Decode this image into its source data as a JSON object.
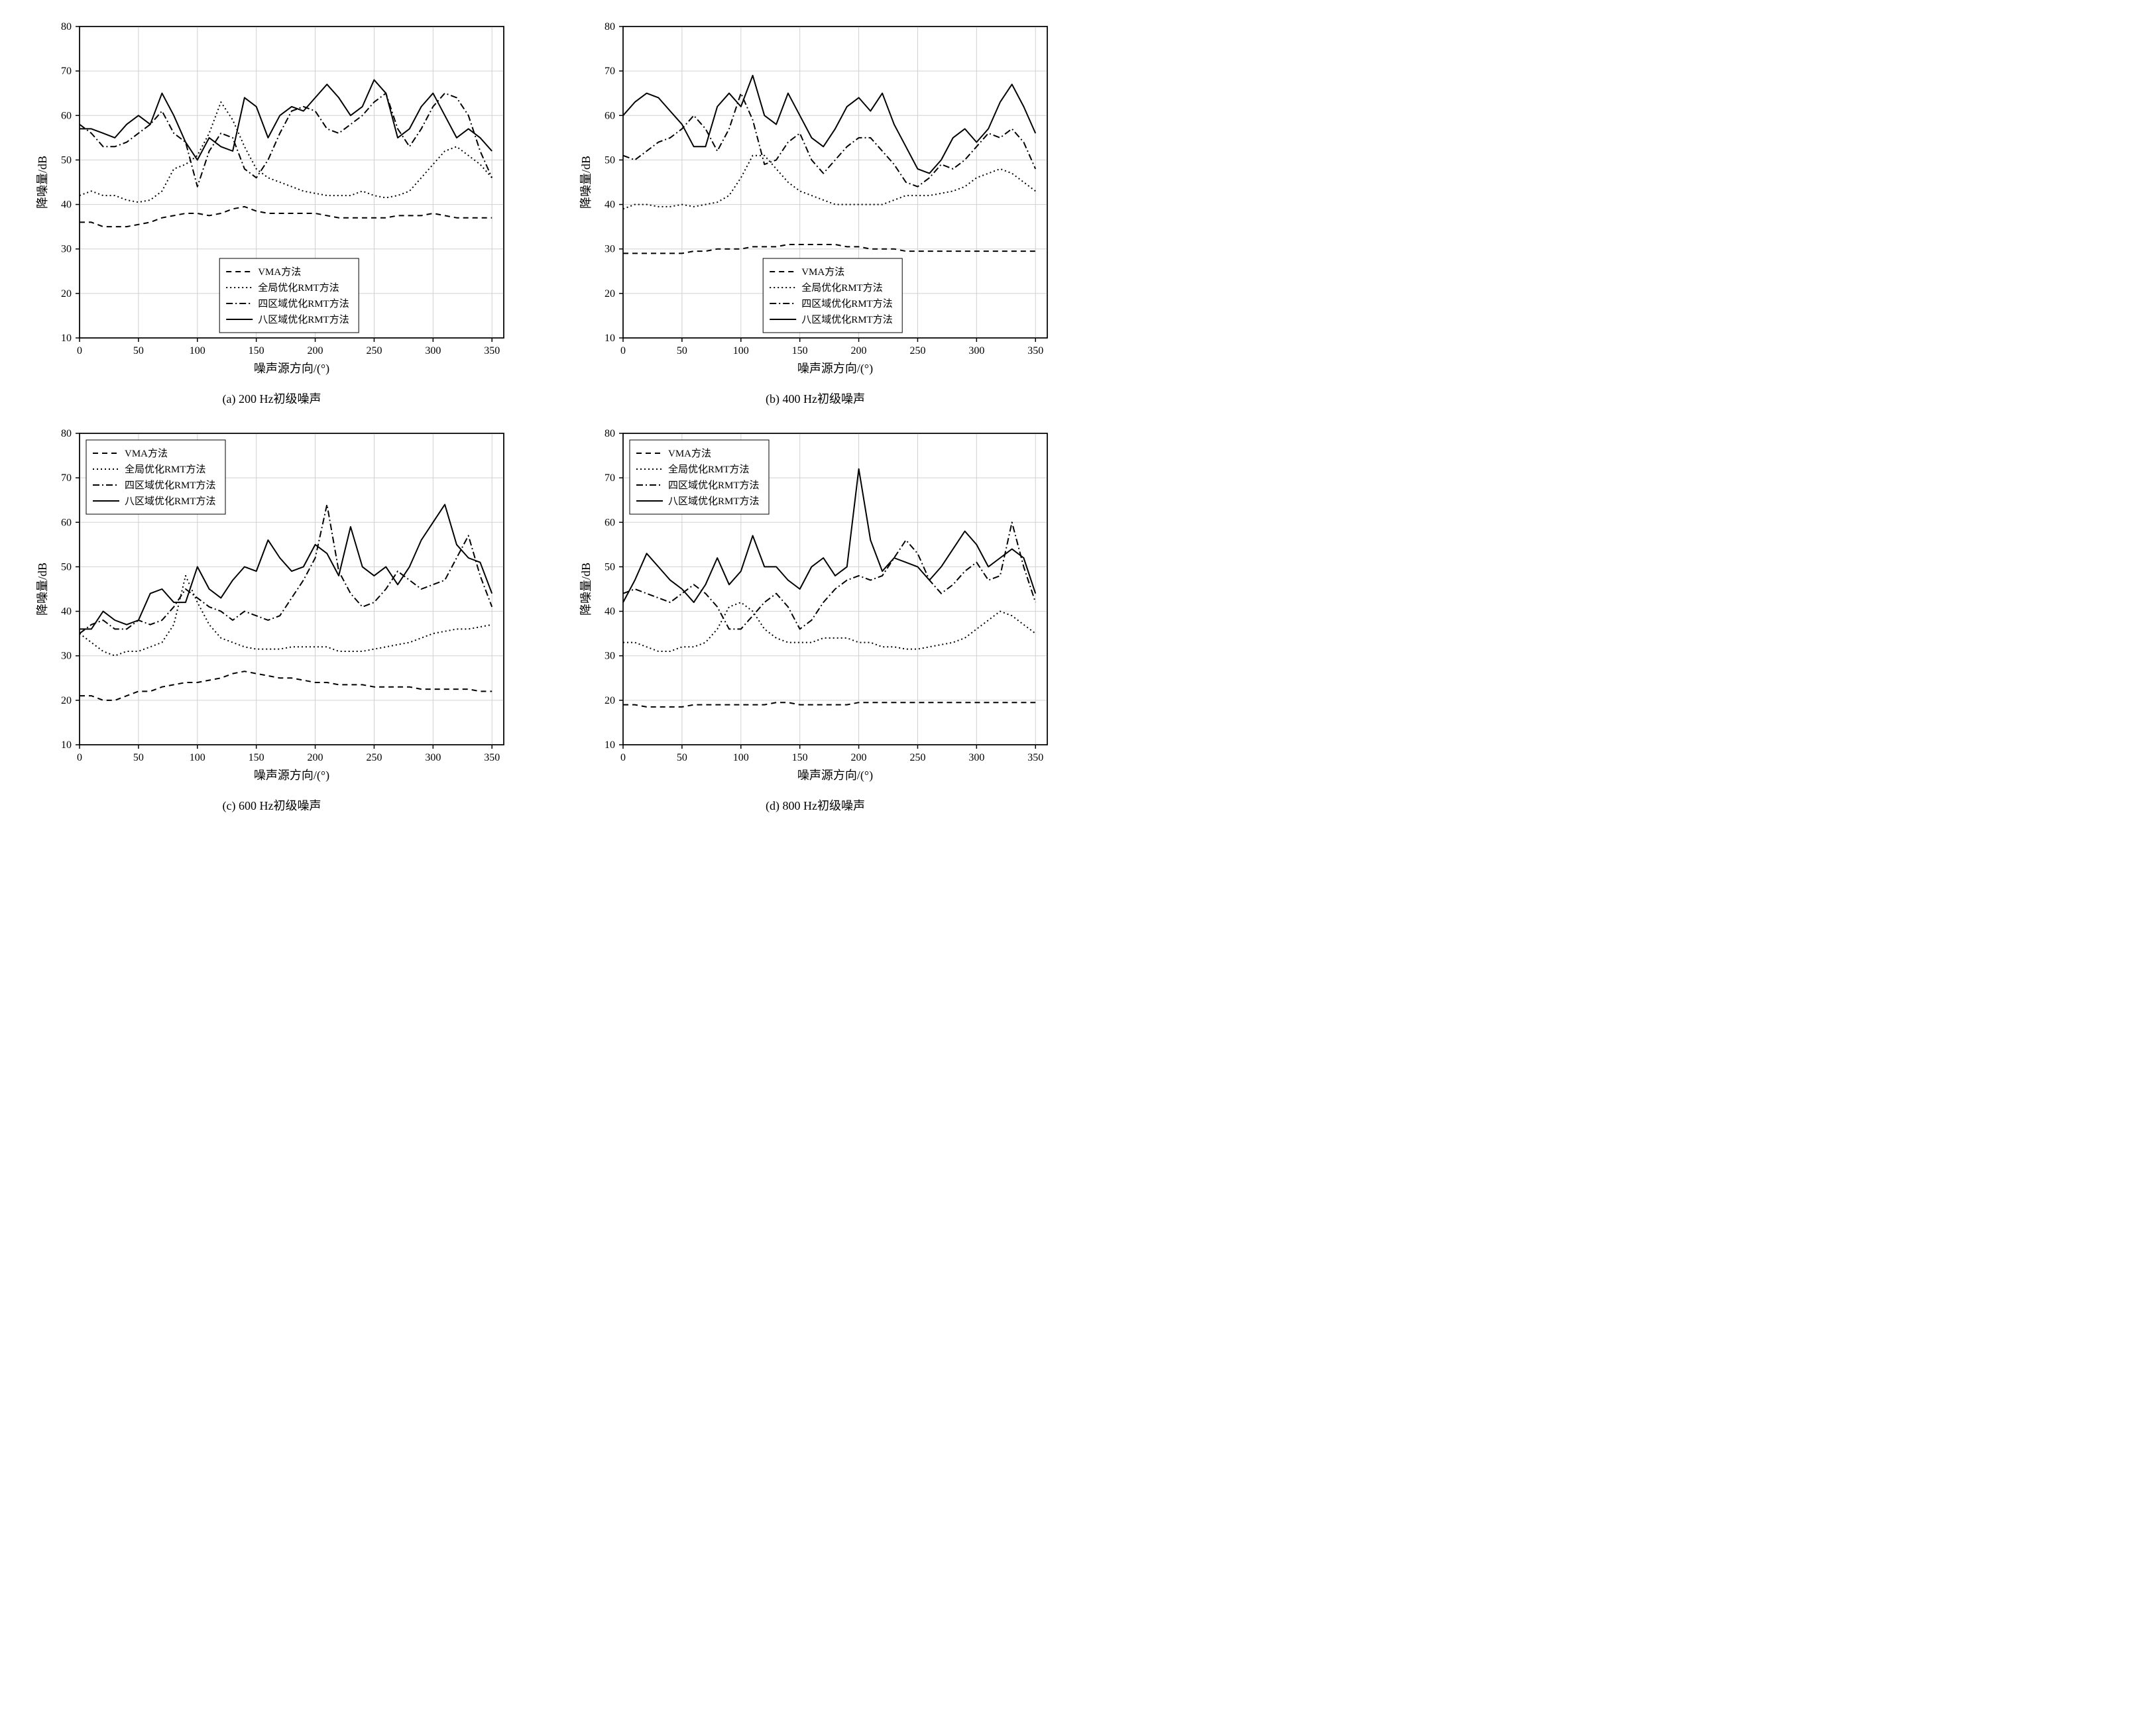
{
  "global": {
    "background_color": "#ffffff",
    "plot_bg_color": "#ffffff",
    "grid_color": "#d0d0d0",
    "axis_color": "#000000",
    "line_color": "#000000",
    "line_width": 2,
    "font_family": "Times New Roman, SimSun, serif",
    "tick_fontsize": 16,
    "label_fontsize": 18,
    "legend_fontsize": 15,
    "caption_fontsize": 18,
    "xlim": [
      0,
      360
    ],
    "ylim": [
      10,
      80
    ],
    "xticks": [
      0,
      50,
      100,
      150,
      200,
      250,
      300,
      350
    ],
    "yticks": [
      10,
      20,
      30,
      40,
      50,
      60,
      70,
      80
    ],
    "xlabel": "噪声源方向/(°)",
    "ylabel": "降噪量/dB",
    "x_step": 10,
    "legend_items": [
      {
        "label": "VMA方法",
        "dash": "8,6"
      },
      {
        "label": "全局优化RMT方法",
        "dash": "2,4"
      },
      {
        "label": "四区域优化RMT方法",
        "dash": "10,4,2,4"
      },
      {
        "label": "八区域优化RMT方法",
        "dash": "none"
      }
    ]
  },
  "charts": [
    {
      "id": "a",
      "caption": "(a) 200 Hz初级噪声",
      "legend_pos": "bottom-center",
      "series": [
        {
          "name": "VMA",
          "dash": "8,6",
          "y": [
            36,
            36,
            35,
            35,
            35,
            35.5,
            36,
            37,
            37.5,
            38,
            38,
            37.5,
            38,
            39,
            39.5,
            38.5,
            38,
            38,
            38,
            38,
            38,
            37.5,
            37,
            37,
            37,
            37,
            37,
            37.5,
            37.5,
            37.5,
            38,
            37.5,
            37,
            37,
            37,
            37
          ]
        },
        {
          "name": "全局",
          "dash": "2,4",
          "y": [
            42,
            43,
            42,
            42,
            41,
            40.5,
            41,
            43,
            48,
            49,
            51,
            56,
            63,
            59,
            53,
            48,
            46,
            45,
            44,
            43,
            42.5,
            42,
            42,
            42,
            43,
            42,
            41.5,
            42,
            43,
            46,
            49,
            52,
            53,
            51,
            49,
            46
          ]
        },
        {
          "name": "四区",
          "dash": "10,4,2,4",
          "y": [
            58,
            56,
            53,
            53,
            54,
            56,
            58,
            61,
            56,
            54,
            44,
            52,
            56,
            55,
            48,
            46,
            50,
            56,
            61,
            62,
            61,
            57,
            56,
            58,
            60,
            63,
            65,
            57,
            53,
            57,
            62,
            65,
            64,
            60,
            52,
            46
          ]
        },
        {
          "name": "八区",
          "dash": "none",
          "y": [
            57,
            57,
            56,
            55,
            58,
            60,
            58,
            65,
            60,
            54,
            50,
            55,
            53,
            52,
            64,
            62,
            55,
            60,
            62,
            61,
            64,
            67,
            64,
            60,
            62,
            68,
            65,
            55,
            57,
            62,
            65,
            60,
            55,
            57,
            55,
            52
          ]
        }
      ]
    },
    {
      "id": "b",
      "caption": "(b) 400 Hz初级噪声",
      "legend_pos": "bottom-center",
      "series": [
        {
          "name": "VMA",
          "dash": "8,6",
          "y": [
            29,
            29,
            29,
            29,
            29,
            29,
            29.5,
            29.5,
            30,
            30,
            30,
            30.5,
            30.5,
            30.5,
            31,
            31,
            31,
            31,
            31,
            30.5,
            30.5,
            30,
            30,
            30,
            29.5,
            29.5,
            29.5,
            29.5,
            29.5,
            29.5,
            29.5,
            29.5,
            29.5,
            29.5,
            29.5,
            29.5
          ]
        },
        {
          "name": "全局",
          "dash": "2,4",
          "y": [
            39,
            40,
            40,
            39.5,
            39.5,
            40,
            39.5,
            40,
            40.5,
            42,
            46,
            51,
            51,
            48,
            45,
            43,
            42,
            41,
            40,
            40,
            40,
            40,
            40,
            41,
            42,
            42,
            42,
            42.5,
            43,
            44,
            46,
            47,
            48,
            47,
            45,
            43
          ]
        },
        {
          "name": "四区",
          "dash": "10,4,2,4",
          "y": [
            51,
            50,
            52,
            54,
            55,
            57,
            60,
            57,
            52,
            57,
            65,
            59,
            49,
            50,
            54,
            56,
            50,
            47,
            50,
            53,
            55,
            55,
            52,
            49,
            45,
            44,
            46,
            49,
            48,
            50,
            53,
            56,
            55,
            57,
            54,
            48
          ]
        },
        {
          "name": "八区",
          "dash": "none",
          "y": [
            60,
            63,
            65,
            64,
            61,
            58,
            53,
            53,
            62,
            65,
            62,
            69,
            60,
            58,
            65,
            60,
            55,
            53,
            57,
            62,
            64,
            61,
            65,
            58,
            53,
            48,
            47,
            50,
            55,
            57,
            54,
            57,
            63,
            67,
            62,
            56
          ]
        }
      ]
    },
    {
      "id": "c",
      "caption": "(c) 600 Hz初级噪声",
      "legend_pos": "top-left",
      "series": [
        {
          "name": "VMA",
          "dash": "8,6",
          "y": [
            21,
            21,
            20,
            20,
            21,
            22,
            22,
            23,
            23.5,
            24,
            24,
            24.5,
            25,
            26,
            26.5,
            26,
            25.5,
            25,
            25,
            24.5,
            24,
            24,
            23.5,
            23.5,
            23.5,
            23,
            23,
            23,
            23,
            22.5,
            22.5,
            22.5,
            22.5,
            22.5,
            22,
            22
          ]
        },
        {
          "name": "全局",
          "dash": "2,4",
          "y": [
            35,
            33,
            31,
            30,
            31,
            31,
            32,
            33,
            37,
            48,
            42,
            37,
            34,
            33,
            32,
            31.5,
            31.5,
            31.5,
            32,
            32,
            32,
            32,
            31,
            31,
            31,
            31.5,
            32,
            32.5,
            33,
            34,
            35,
            35.5,
            36,
            36,
            36.5,
            37
          ]
        },
        {
          "name": "四区",
          "dash": "10,4,2,4",
          "y": [
            35,
            37,
            38,
            36,
            36,
            38,
            37,
            38,
            41,
            45,
            43,
            41,
            40,
            38,
            40,
            39,
            38,
            39,
            43,
            47,
            52,
            64,
            49,
            44,
            41,
            42,
            45,
            49,
            47,
            45,
            46,
            47,
            52,
            57,
            48,
            41
          ]
        },
        {
          "name": "八区",
          "dash": "none",
          "y": [
            36,
            36,
            40,
            38,
            37,
            38,
            44,
            45,
            42,
            42,
            50,
            45,
            43,
            47,
            50,
            49,
            56,
            52,
            49,
            50,
            55,
            53,
            48,
            59,
            50,
            48,
            50,
            46,
            50,
            56,
            60,
            64,
            55,
            52,
            51,
            44
          ]
        }
      ]
    },
    {
      "id": "d",
      "caption": "(d) 800 Hz初级噪声",
      "legend_pos": "top-left",
      "series": [
        {
          "name": "VMA",
          "dash": "8,6",
          "y": [
            19,
            19,
            18.5,
            18.5,
            18.5,
            18.5,
            19,
            19,
            19,
            19,
            19,
            19,
            19,
            19.5,
            19.5,
            19,
            19,
            19,
            19,
            19,
            19.5,
            19.5,
            19.5,
            19.5,
            19.5,
            19.5,
            19.5,
            19.5,
            19.5,
            19.5,
            19.5,
            19.5,
            19.5,
            19.5,
            19.5,
            19.5
          ]
        },
        {
          "name": "全局",
          "dash": "2,4",
          "y": [
            33,
            33,
            32,
            31,
            31,
            32,
            32,
            33,
            36,
            41,
            42,
            40,
            36,
            34,
            33,
            33,
            33,
            34,
            34,
            34,
            33,
            33,
            32,
            32,
            31.5,
            31.5,
            32,
            32.5,
            33,
            34,
            36,
            38,
            40,
            39,
            37,
            35
          ]
        },
        {
          "name": "四区",
          "dash": "10,4,2,4",
          "y": [
            44,
            45,
            44,
            43,
            42,
            44,
            46,
            44,
            41,
            36,
            36,
            39,
            42,
            44,
            41,
            36,
            38,
            42,
            45,
            47,
            48,
            47,
            48,
            52,
            56,
            53,
            47,
            44,
            46,
            49,
            51,
            47,
            48,
            60,
            50,
            42
          ]
        },
        {
          "name": "八区",
          "dash": "none",
          "y": [
            42,
            47,
            53,
            50,
            47,
            45,
            42,
            46,
            52,
            46,
            49,
            57,
            50,
            50,
            47,
            45,
            50,
            52,
            48,
            50,
            72,
            56,
            49,
            52,
            51,
            50,
            47,
            50,
            54,
            58,
            55,
            50,
            52,
            54,
            52,
            44
          ]
        }
      ]
    }
  ]
}
